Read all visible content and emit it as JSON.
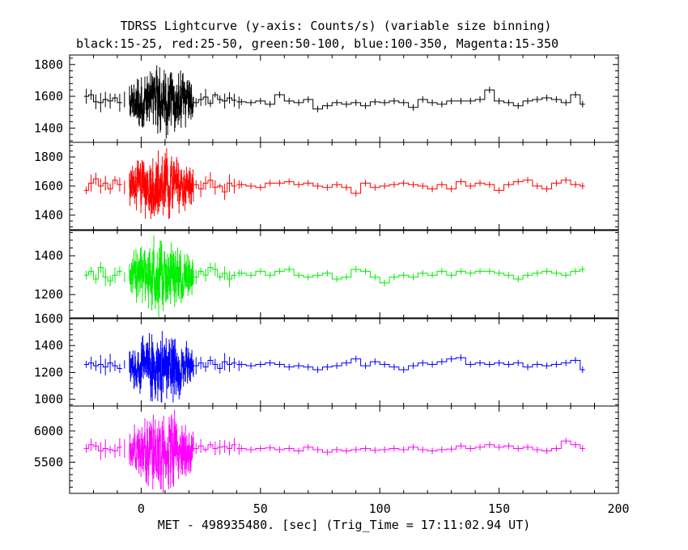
{
  "chart_data": {
    "type": "line",
    "title": "TDRSS Lightcurve (y-axis: Counts/s) (variable size binning)",
    "subtitle": "black:15-25, red:25-50, green:50-100, blue:100-350, Magenta:15-350",
    "xlabel": "MET - 498935480. [sec] (Trig_Time = 17:11:02.94 UT)",
    "xlim": [
      -30,
      200
    ],
    "x_ticks": [
      0,
      50,
      100,
      150,
      200
    ],
    "grid": false,
    "panels": [
      {
        "band": "black",
        "color": "#000000",
        "ylim": [
          1310,
          1860
        ],
        "y_ticks": [
          1400,
          1600,
          1800
        ],
        "dense": {
          "x": [
            -5,
            22
          ],
          "mean": 1565,
          "amp": 150
        },
        "early": [
          [
            -24,
            1600
          ],
          [
            -22,
            1610
          ],
          [
            -20,
            1565
          ],
          [
            -18,
            1560
          ],
          [
            -16,
            1580
          ],
          [
            -14,
            1570
          ],
          [
            -12,
            1590
          ],
          [
            -10,
            1560
          ],
          [
            -8,
            1580
          ]
        ],
        "mid": [
          [
            22,
            1560
          ],
          [
            24,
            1580
          ],
          [
            26,
            1595
          ],
          [
            28,
            1555
          ],
          [
            30,
            1610
          ],
          [
            32,
            1580
          ],
          [
            34,
            1570
          ],
          [
            36,
            1590
          ],
          [
            38,
            1575
          ],
          [
            40,
            1560
          ]
        ],
        "late": [
          [
            40,
            1565
          ],
          [
            44,
            1560
          ],
          [
            48,
            1570
          ],
          [
            52,
            1550
          ],
          [
            56,
            1610
          ],
          [
            60,
            1570
          ],
          [
            64,
            1560
          ],
          [
            68,
            1580
          ],
          [
            72,
            1520
          ],
          [
            76,
            1540
          ],
          [
            80,
            1560
          ],
          [
            84,
            1550
          ],
          [
            88,
            1560
          ],
          [
            92,
            1540
          ],
          [
            96,
            1565
          ],
          [
            100,
            1560
          ],
          [
            104,
            1570
          ],
          [
            108,
            1560
          ],
          [
            112,
            1530
          ],
          [
            116,
            1580
          ],
          [
            120,
            1560
          ],
          [
            124,
            1550
          ],
          [
            128,
            1570
          ],
          [
            132,
            1570
          ],
          [
            136,
            1570
          ],
          [
            140,
            1580
          ],
          [
            144,
            1640
          ],
          [
            148,
            1570
          ],
          [
            152,
            1560
          ],
          [
            156,
            1540
          ],
          [
            160,
            1570
          ],
          [
            164,
            1580
          ],
          [
            168,
            1590
          ],
          [
            172,
            1580
          ],
          [
            176,
            1560
          ],
          [
            180,
            1610
          ],
          [
            184,
            1550
          ],
          [
            186,
            1530
          ]
        ]
      },
      {
        "band": "red",
        "color": "#ff0000",
        "ylim": [
          1300,
          1900
        ],
        "y_ticks": [
          1400,
          1600,
          1800
        ],
        "dense": {
          "x": [
            -5,
            22
          ],
          "mean": 1600,
          "amp": 160
        },
        "early": [
          [
            -24,
            1570
          ],
          [
            -22,
            1620
          ],
          [
            -20,
            1650
          ],
          [
            -18,
            1600
          ],
          [
            -16,
            1620
          ],
          [
            -14,
            1580
          ],
          [
            -12,
            1640
          ],
          [
            -10,
            1610
          ],
          [
            -8,
            1590
          ]
        ],
        "mid": [
          [
            22,
            1610
          ],
          [
            24,
            1580
          ],
          [
            26,
            1620
          ],
          [
            28,
            1640
          ],
          [
            30,
            1590
          ],
          [
            32,
            1600
          ],
          [
            34,
            1560
          ],
          [
            36,
            1620
          ],
          [
            38,
            1600
          ],
          [
            40,
            1610
          ]
        ],
        "late": [
          [
            40,
            1610
          ],
          [
            44,
            1600
          ],
          [
            48,
            1590
          ],
          [
            52,
            1620
          ],
          [
            56,
            1620
          ],
          [
            60,
            1630
          ],
          [
            64,
            1610
          ],
          [
            68,
            1620
          ],
          [
            72,
            1600
          ],
          [
            76,
            1590
          ],
          [
            80,
            1610
          ],
          [
            84,
            1590
          ],
          [
            88,
            1550
          ],
          [
            92,
            1620
          ],
          [
            96,
            1590
          ],
          [
            100,
            1600
          ],
          [
            104,
            1610
          ],
          [
            108,
            1620
          ],
          [
            112,
            1610
          ],
          [
            116,
            1600
          ],
          [
            120,
            1580
          ],
          [
            124,
            1610
          ],
          [
            128,
            1580
          ],
          [
            132,
            1630
          ],
          [
            136,
            1600
          ],
          [
            140,
            1620
          ],
          [
            144,
            1610
          ],
          [
            148,
            1570
          ],
          [
            152,
            1610
          ],
          [
            156,
            1630
          ],
          [
            160,
            1640
          ],
          [
            164,
            1600
          ],
          [
            168,
            1580
          ],
          [
            172,
            1620
          ],
          [
            176,
            1640
          ],
          [
            180,
            1610
          ],
          [
            184,
            1600
          ],
          [
            186,
            1600
          ]
        ]
      },
      {
        "band": "green",
        "color": "#00ee00",
        "ylim": [
          1080,
          1530
        ],
        "y_ticks": [
          1200,
          1400
        ],
        "dense": {
          "x": [
            -5,
            22
          ],
          "mean": 1300,
          "amp": 130
        },
        "early": [
          [
            -24,
            1300
          ],
          [
            -22,
            1320
          ],
          [
            -20,
            1280
          ],
          [
            -18,
            1340
          ],
          [
            -16,
            1290
          ],
          [
            -14,
            1270
          ],
          [
            -12,
            1300
          ],
          [
            -10,
            1320
          ],
          [
            -8,
            1290
          ]
        ],
        "mid": [
          [
            22,
            1290
          ],
          [
            24,
            1320
          ],
          [
            26,
            1300
          ],
          [
            28,
            1340
          ],
          [
            30,
            1330
          ],
          [
            32,
            1290
          ],
          [
            34,
            1310
          ],
          [
            36,
            1280
          ],
          [
            38,
            1300
          ],
          [
            40,
            1310
          ]
        ],
        "late": [
          [
            40,
            1310
          ],
          [
            44,
            1300
          ],
          [
            48,
            1320
          ],
          [
            52,
            1300
          ],
          [
            56,
            1320
          ],
          [
            60,
            1330
          ],
          [
            64,
            1300
          ],
          [
            68,
            1290
          ],
          [
            72,
            1300
          ],
          [
            76,
            1310
          ],
          [
            80,
            1280
          ],
          [
            84,
            1290
          ],
          [
            88,
            1330
          ],
          [
            92,
            1320
          ],
          [
            96,
            1290
          ],
          [
            100,
            1260
          ],
          [
            104,
            1290
          ],
          [
            108,
            1300
          ],
          [
            112,
            1290
          ],
          [
            116,
            1310
          ],
          [
            120,
            1300
          ],
          [
            124,
            1320
          ],
          [
            128,
            1300
          ],
          [
            132,
            1320
          ],
          [
            136,
            1310
          ],
          [
            140,
            1320
          ],
          [
            144,
            1320
          ],
          [
            148,
            1310
          ],
          [
            152,
            1300
          ],
          [
            156,
            1280
          ],
          [
            160,
            1300
          ],
          [
            164,
            1310
          ],
          [
            168,
            1320
          ],
          [
            172,
            1310
          ],
          [
            176,
            1300
          ],
          [
            180,
            1320
          ],
          [
            184,
            1330
          ],
          [
            186,
            1340
          ]
        ]
      },
      {
        "band": "blue",
        "color": "#0000ff",
        "ylim": [
          950,
          1600
        ],
        "y_ticks": [
          1000,
          1200,
          1400,
          1600
        ],
        "dense": {
          "x": [
            -5,
            22
          ],
          "mean": 1240,
          "amp": 170
        },
        "early": [
          [
            -24,
            1260
          ],
          [
            -22,
            1270
          ],
          [
            -20,
            1250
          ],
          [
            -18,
            1260
          ],
          [
            -16,
            1240
          ],
          [
            -14,
            1270
          ],
          [
            -12,
            1250
          ],
          [
            -10,
            1230
          ],
          [
            -8,
            1260
          ]
        ],
        "mid": [
          [
            22,
            1250
          ],
          [
            24,
            1270
          ],
          [
            26,
            1240
          ],
          [
            28,
            1290
          ],
          [
            30,
            1260
          ],
          [
            32,
            1230
          ],
          [
            34,
            1280
          ],
          [
            36,
            1260
          ],
          [
            38,
            1270
          ],
          [
            40,
            1250
          ]
        ],
        "late": [
          [
            40,
            1260
          ],
          [
            44,
            1250
          ],
          [
            48,
            1260
          ],
          [
            52,
            1270
          ],
          [
            56,
            1260
          ],
          [
            60,
            1240
          ],
          [
            64,
            1250
          ],
          [
            68,
            1240
          ],
          [
            72,
            1220
          ],
          [
            76,
            1240
          ],
          [
            80,
            1250
          ],
          [
            84,
            1270
          ],
          [
            88,
            1300
          ],
          [
            92,
            1250
          ],
          [
            96,
            1280
          ],
          [
            100,
            1260
          ],
          [
            104,
            1240
          ],
          [
            108,
            1220
          ],
          [
            112,
            1250
          ],
          [
            116,
            1270
          ],
          [
            120,
            1260
          ],
          [
            124,
            1280
          ],
          [
            128,
            1300
          ],
          [
            132,
            1310
          ],
          [
            136,
            1260
          ],
          [
            140,
            1270
          ],
          [
            144,
            1260
          ],
          [
            148,
            1270
          ],
          [
            152,
            1260
          ],
          [
            156,
            1270
          ],
          [
            160,
            1240
          ],
          [
            164,
            1260
          ],
          [
            168,
            1250
          ],
          [
            172,
            1260
          ],
          [
            176,
            1270
          ],
          [
            180,
            1290
          ],
          [
            184,
            1220
          ],
          [
            186,
            1220
          ]
        ]
      },
      {
        "band": "magenta",
        "color": "#ff00ff",
        "ylim": [
          5000,
          6400
        ],
        "y_ticks": [
          5500,
          6000
        ],
        "dense": {
          "x": [
            -5,
            22
          ],
          "mean": 5700,
          "amp": 420
        },
        "early": [
          [
            -24,
            5720
          ],
          [
            -22,
            5780
          ],
          [
            -20,
            5760
          ],
          [
            -18,
            5680
          ],
          [
            -16,
            5720
          ],
          [
            -14,
            5700
          ],
          [
            -12,
            5680
          ],
          [
            -10,
            5740
          ],
          [
            -8,
            5720
          ]
        ],
        "mid": [
          [
            22,
            5720
          ],
          [
            24,
            5760
          ],
          [
            26,
            5700
          ],
          [
            28,
            5780
          ],
          [
            30,
            5720
          ],
          [
            32,
            5740
          ],
          [
            34,
            5750
          ],
          [
            36,
            5720
          ],
          [
            38,
            5780
          ],
          [
            40,
            5710
          ]
        ],
        "late": [
          [
            40,
            5720
          ],
          [
            44,
            5700
          ],
          [
            48,
            5720
          ],
          [
            52,
            5730
          ],
          [
            56,
            5700
          ],
          [
            60,
            5720
          ],
          [
            64,
            5680
          ],
          [
            68,
            5740
          ],
          [
            72,
            5700
          ],
          [
            76,
            5660
          ],
          [
            80,
            5700
          ],
          [
            84,
            5680
          ],
          [
            88,
            5700
          ],
          [
            92,
            5720
          ],
          [
            96,
            5690
          ],
          [
            100,
            5700
          ],
          [
            104,
            5720
          ],
          [
            108,
            5700
          ],
          [
            112,
            5740
          ],
          [
            116,
            5700
          ],
          [
            120,
            5680
          ],
          [
            124,
            5700
          ],
          [
            128,
            5710
          ],
          [
            132,
            5760
          ],
          [
            136,
            5720
          ],
          [
            140,
            5740
          ],
          [
            144,
            5780
          ],
          [
            148,
            5740
          ],
          [
            152,
            5760
          ],
          [
            156,
            5720
          ],
          [
            160,
            5740
          ],
          [
            164,
            5700
          ],
          [
            168,
            5680
          ],
          [
            172,
            5720
          ],
          [
            176,
            5840
          ],
          [
            180,
            5780
          ],
          [
            184,
            5720
          ],
          [
            186,
            5680
          ]
        ]
      }
    ]
  }
}
